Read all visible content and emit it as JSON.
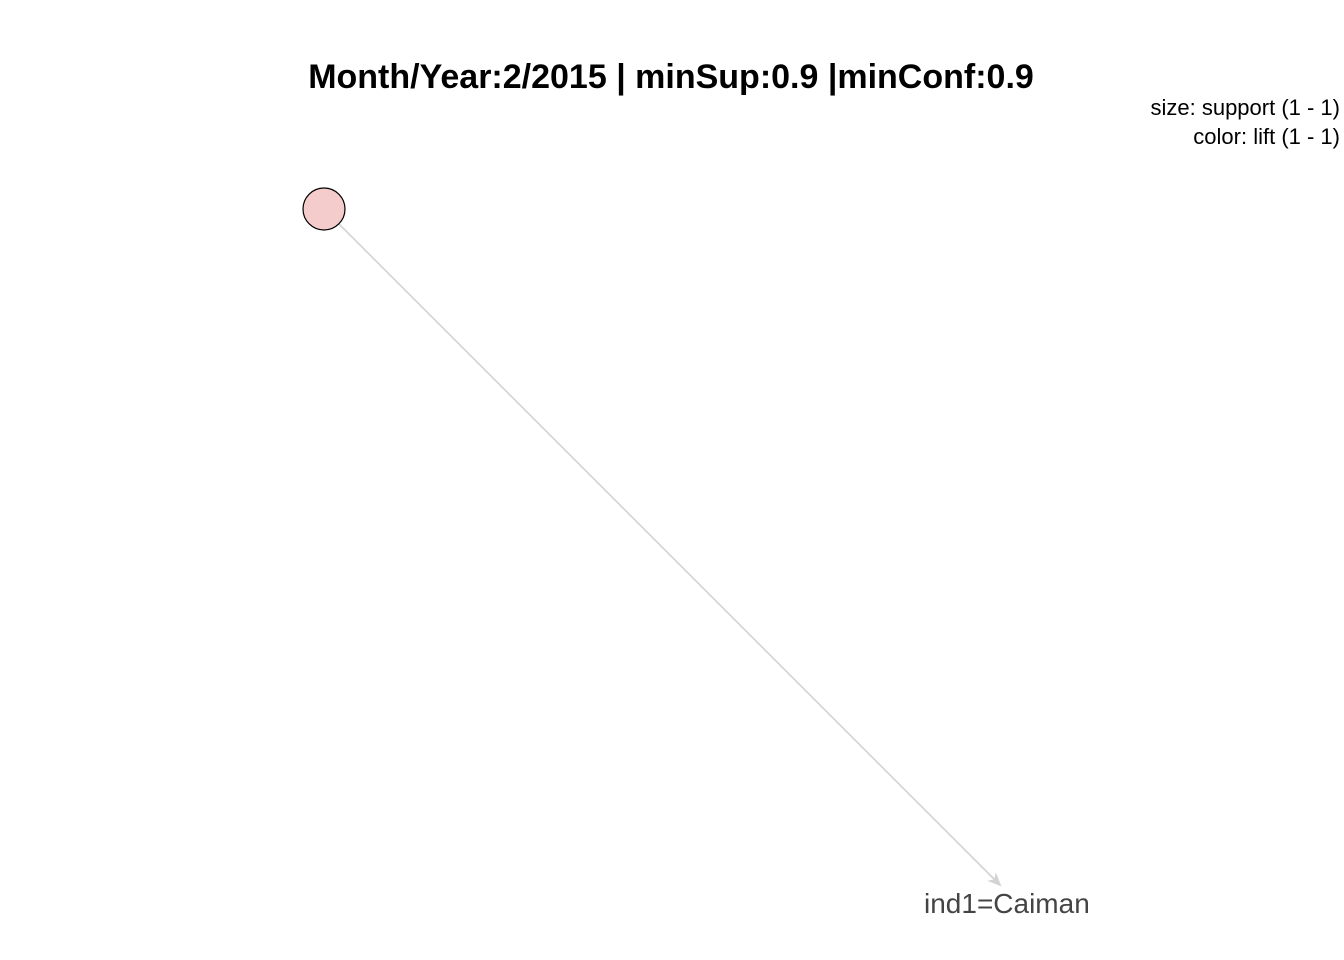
{
  "plot": {
    "title": "Month/Year:2/2015 | minSup:0.9 |minConf:0.9",
    "legend": {
      "size_line": "size: support (1 - 1)",
      "color_line": "color: lift (1 - 1)"
    }
  },
  "graph": {
    "rule_node": {
      "fill": "#f4cccc",
      "stroke": "#000000"
    },
    "item_node": {
      "label": "ind1=Caiman",
      "label_color": "#444444"
    },
    "edge": {
      "color": "#d3d3d3",
      "direction": "rule-to-item"
    }
  }
}
